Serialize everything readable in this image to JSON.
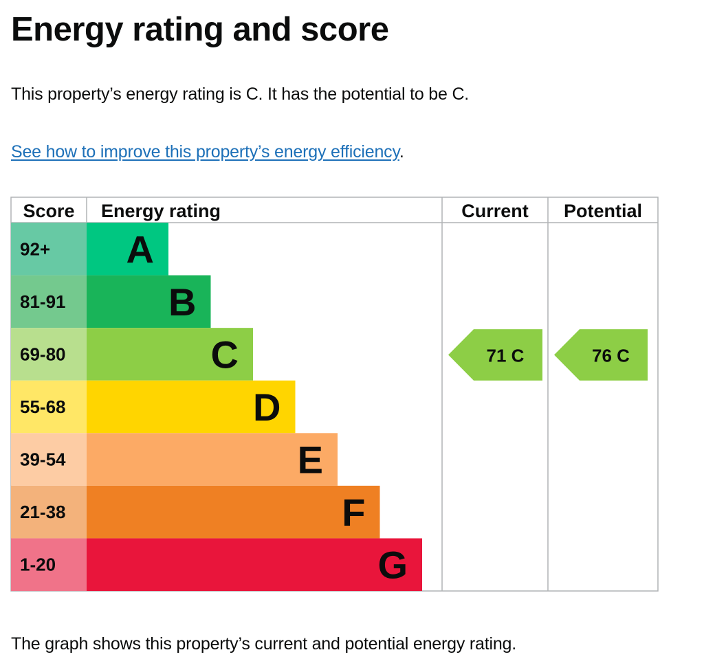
{
  "page": {
    "title": "Energy rating and score",
    "summary": "This property’s energy rating is C. It has the potential to be C.",
    "link_text": "See how to improve this property’s energy efficiency",
    "link_suffix": ".",
    "footer": "The graph shows this property’s current and potential energy rating."
  },
  "chart_data": {
    "type": "bar",
    "headers": {
      "score": "Score",
      "rating": "Energy rating",
      "current": "Current",
      "potential": "Potential"
    },
    "bands": [
      {
        "score_label": "92+",
        "letter": "A",
        "min": 92,
        "max": 100,
        "color": "#00c781",
        "light_color": "#67c9a4"
      },
      {
        "score_label": "81-91",
        "letter": "B",
        "min": 81,
        "max": 91,
        "color": "#19b459",
        "light_color": "#74c98e"
      },
      {
        "score_label": "69-80",
        "letter": "C",
        "min": 69,
        "max": 80,
        "color": "#8dce46",
        "light_color": "#b8df8e"
      },
      {
        "score_label": "55-68",
        "letter": "D",
        "min": 55,
        "max": 68,
        "color": "#ffd500",
        "light_color": "#ffe766"
      },
      {
        "score_label": "39-54",
        "letter": "E",
        "min": 39,
        "max": 54,
        "color": "#fcaa65",
        "light_color": "#fdcca4"
      },
      {
        "score_label": "21-38",
        "letter": "F",
        "min": 21,
        "max": 38,
        "color": "#ef8023",
        "light_color": "#f3b27b"
      },
      {
        "score_label": "1-20",
        "letter": "G",
        "min": 1,
        "max": 20,
        "color": "#e9153b",
        "light_color": "#f07389"
      }
    ],
    "current": {
      "score": 71,
      "letter": "C",
      "label": "71  C",
      "color": "#8dce46"
    },
    "potential": {
      "score": 76,
      "letter": "C",
      "label": "76  C",
      "color": "#8dce46"
    }
  }
}
